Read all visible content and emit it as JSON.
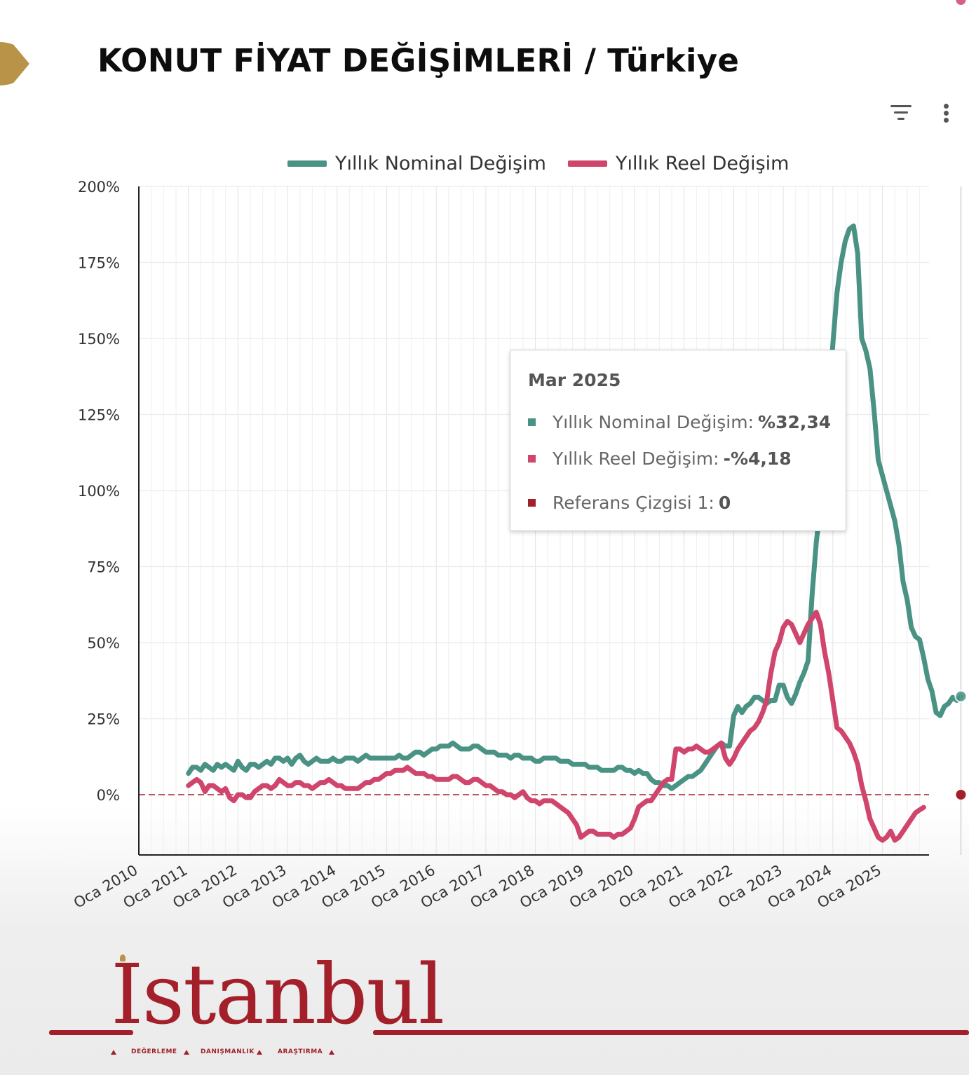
{
  "title": "KONUT FİYAT DEĞİŞİMLERİ / Türkiye",
  "toolbar": {
    "filter_icon": "filter-icon",
    "more_icon": "more-vert-icon"
  },
  "chart_data": {
    "type": "line",
    "title": "",
    "xlabel": "",
    "ylabel": "",
    "ylim": [
      -20,
      200
    ],
    "y_ticks": [
      "200%",
      "175%",
      "150%",
      "125%",
      "100%",
      "75%",
      "50%",
      "25%",
      "0%"
    ],
    "x_ticks": [
      "Oca 2010",
      "Oca 2011",
      "Oca 2012",
      "Oca 2013",
      "Oca 2014",
      "Oca 2015",
      "Oca 2016",
      "Oca 2017",
      "Oca 2018",
      "Oca 2019",
      "Oca 2020",
      "Oca 2021",
      "Oca 2022",
      "Oca 2023",
      "Oca 2024",
      "Oca 2025"
    ],
    "x_start": "Oca 2011",
    "x_end": "Mar 2025",
    "grid": true,
    "legend_position": "top-center",
    "series": [
      {
        "name": "Yıllık Nominal Değişim",
        "color": "#4a9384",
        "values": [
          7,
          9,
          9,
          8,
          10,
          9,
          8,
          10,
          9,
          10,
          9,
          8,
          11,
          9,
          8,
          10,
          10,
          9,
          10,
          11,
          10,
          12,
          12,
          11,
          12,
          10,
          12,
          13,
          11,
          10,
          11,
          12,
          11,
          11,
          11,
          12,
          11,
          11,
          12,
          12,
          12,
          11,
          12,
          13,
          12,
          12,
          12,
          12,
          12,
          12,
          12,
          13,
          12,
          12,
          13,
          14,
          14,
          13,
          14,
          15,
          15,
          16,
          16,
          16,
          17,
          16,
          15,
          15,
          15,
          16,
          16,
          15,
          14,
          14,
          14,
          13,
          13,
          13,
          12,
          13,
          13,
          12,
          12,
          12,
          11,
          11,
          12,
          12,
          12,
          12,
          11,
          11,
          11,
          10,
          10,
          10,
          10,
          9,
          9,
          9,
          8,
          8,
          8,
          8,
          9,
          9,
          8,
          8,
          7,
          8,
          7,
          7,
          5,
          4,
          4,
          3,
          3,
          2,
          3,
          4,
          5,
          6,
          6,
          7,
          8,
          10,
          12,
          14,
          16,
          17,
          16,
          16,
          26,
          29,
          27,
          29,
          30,
          32,
          32,
          31,
          30,
          31,
          31,
          36,
          36,
          32,
          30,
          33,
          37,
          40,
          44,
          66,
          83,
          95,
          110,
          130,
          148,
          165,
          175,
          182,
          186,
          187,
          178,
          150,
          146,
          140,
          126,
          110,
          105,
          100,
          95,
          90,
          82,
          70,
          64,
          55,
          52,
          51,
          45,
          38,
          34,
          27,
          26,
          29,
          30,
          32,
          31,
          32.34
        ]
      },
      {
        "name": "Yıllık Reel Değişim",
        "color": "#d0456b",
        "values": [
          3,
          4,
          5,
          4,
          1,
          3,
          3,
          2,
          1,
          2,
          -1,
          -2,
          0,
          0,
          -1,
          -1,
          1,
          2,
          3,
          3,
          2,
          3,
          5,
          4,
          3,
          3,
          4,
          4,
          3,
          3,
          2,
          3,
          4,
          4,
          5,
          4,
          3,
          3,
          2,
          2,
          2,
          2,
          3,
          4,
          4,
          5,
          5,
          6,
          7,
          7,
          8,
          8,
          8,
          9,
          8,
          7,
          7,
          7,
          6,
          6,
          5,
          5,
          5,
          5,
          6,
          6,
          5,
          4,
          4,
          5,
          5,
          4,
          3,
          3,
          2,
          1,
          1,
          0,
          0,
          -1,
          0,
          1,
          -1,
          -2,
          -2,
          -3,
          -2,
          -2,
          -2,
          -3,
          -4,
          -5,
          -6,
          -8,
          -10,
          -14,
          -13,
          -12,
          -12,
          -13,
          -13,
          -13,
          -13,
          -14,
          -13,
          -13,
          -12,
          -11,
          -8,
          -4,
          -3,
          -2,
          -2,
          0,
          2,
          4,
          5,
          5,
          15,
          15,
          14,
          15,
          15,
          16,
          15,
          14,
          14,
          15,
          16,
          17,
          12,
          10,
          12,
          15,
          17,
          19,
          21,
          22,
          24,
          27,
          31,
          40,
          47,
          50,
          55,
          57,
          56,
          53,
          50,
          53,
          56,
          58,
          60,
          56,
          47,
          40,
          31,
          22,
          21,
          19,
          17,
          14,
          10,
          3,
          -2,
          -8,
          -11,
          -14,
          -15,
          -14,
          -12,
          -15,
          -14,
          -12,
          -10,
          -8,
          -6,
          -5,
          -4.18
        ]
      }
    ],
    "reference_line": {
      "name": "Referans Çizgisi 1",
      "value": 0,
      "color": "#a3202a"
    }
  },
  "tooltip": {
    "date": "Mar 2025",
    "rows": [
      {
        "label": "Yıllık Nominal Değişim:",
        "value": "%32,34",
        "color": "#4a9384"
      },
      {
        "label": "Yıllık Reel Değişim:",
        "value": "-%4,18",
        "color": "#d0456b"
      },
      {
        "label": "Referans Çizgisi 1:",
        "value": "0",
        "color": "#a3202a"
      }
    ]
  },
  "brand": {
    "wordmark": "Istanbul",
    "tags": [
      "DEĞERLEME",
      "DANIŞMANLIK",
      "ARAŞTIRMA"
    ]
  }
}
